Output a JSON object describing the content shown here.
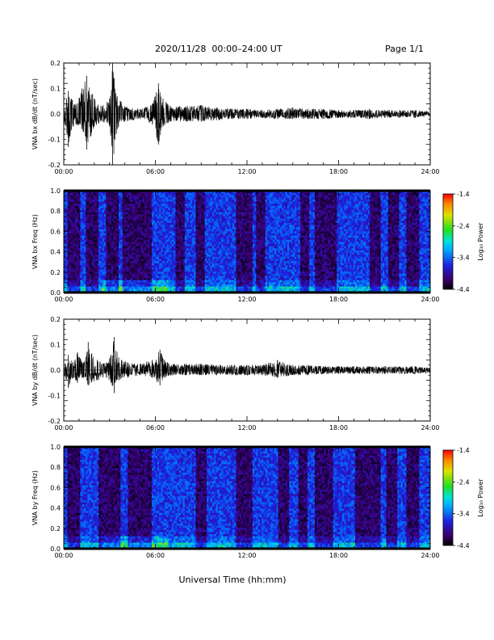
{
  "header": {
    "title": "2020/11/28  00:00–24:00 UT",
    "page": "Page 1/1"
  },
  "xlabel": "Universal Time (hh:mm)",
  "colorbar": {
    "label": "Log₁₀ Power",
    "ticks": [
      "-1.4",
      "-2.4",
      "-3.4",
      "-4.4"
    ],
    "range": [
      -4.4,
      -1.4
    ]
  },
  "chart_data": [
    {
      "type": "line",
      "ylabel": "VNA bx dB/dt (nT/sec)",
      "xlim": [
        0,
        24
      ],
      "xticks": [
        "00:00",
        "06:00",
        "12:00",
        "18:00",
        "24:00"
      ],
      "ylim": [
        -0.2,
        0.2
      ],
      "yticks": [
        "0.2",
        "0.1",
        "0.0",
        "-0.1",
        "-0.2"
      ],
      "envelope": {
        "hours": [
          0,
          0.3,
          0.5,
          0.8,
          1.2,
          1.5,
          2.0,
          2.5,
          3.0,
          3.2,
          3.5,
          4.0,
          5.0,
          5.8,
          6.2,
          6.5,
          7.0,
          8.0,
          9.0,
          10.0,
          11.0,
          12.0,
          13.0,
          14.0,
          15.0,
          16.0,
          17.0,
          18.0,
          19.0,
          20.0,
          21.0,
          22.0,
          23.0,
          24.0
        ],
        "upper": [
          0.02,
          0.09,
          0.06,
          0.04,
          0.1,
          0.15,
          0.06,
          0.03,
          0.06,
          0.2,
          0.07,
          0.03,
          0.02,
          0.04,
          0.12,
          0.06,
          0.03,
          0.03,
          0.035,
          0.025,
          0.02,
          0.02,
          0.015,
          0.02,
          0.025,
          0.02,
          0.02,
          0.015,
          0.015,
          0.02,
          0.015,
          0.015,
          0.015,
          0.01
        ],
        "lower": [
          -0.02,
          -0.13,
          -0.06,
          -0.04,
          -0.06,
          -0.14,
          -0.05,
          -0.03,
          -0.05,
          -0.2,
          -0.06,
          -0.03,
          -0.02,
          -0.04,
          -0.12,
          -0.05,
          -0.03,
          -0.03,
          -0.03,
          -0.025,
          -0.02,
          -0.02,
          -0.015,
          -0.02,
          -0.02,
          -0.02,
          -0.02,
          -0.015,
          -0.015,
          -0.02,
          -0.015,
          -0.015,
          -0.015,
          -0.01
        ]
      }
    },
    {
      "type": "heatmap",
      "ylabel": "VNA bx Freq (Hz)",
      "xlim": [
        0,
        24
      ],
      "xticks": [
        "00:00",
        "06:00",
        "12:00",
        "18:00",
        "24:00"
      ],
      "ylim": [
        0,
        1
      ],
      "yticks": [
        "1.0",
        "0.8",
        "0.6",
        "0.4",
        "0.2",
        "0.0"
      ],
      "zlim": [
        -4.4,
        -1.4
      ],
      "quiet_bands_hours": [
        [
          0.2,
          1.1
        ],
        [
          1.4,
          2.3
        ],
        [
          2.8,
          3.6
        ],
        [
          3.9,
          5.7
        ],
        [
          7.3,
          7.9
        ],
        [
          8.6,
          9.2
        ],
        [
          11.3,
          12.3
        ],
        [
          12.6,
          13.2
        ],
        [
          15.5,
          16.1
        ],
        [
          16.4,
          17.9
        ],
        [
          20.0,
          20.8
        ],
        [
          21.2,
          21.9
        ],
        [
          22.4,
          23.3
        ]
      ],
      "low_freq_enhancement_hours": [
        [
          2.5,
          6.8
        ]
      ]
    },
    {
      "type": "line",
      "ylabel": "VNA by dB/dt (nT/sec)",
      "xlim": [
        0,
        24
      ],
      "xticks": [
        "00:00",
        "06:00",
        "12:00",
        "18:00",
        "24:00"
      ],
      "ylim": [
        -0.2,
        0.2
      ],
      "yticks": [
        "0.2",
        "0.1",
        "0.0",
        "-0.1",
        "-0.2"
      ],
      "envelope": {
        "hours": [
          0,
          0.3,
          0.6,
          0.9,
          1.3,
          1.6,
          2.2,
          2.8,
          3.1,
          3.3,
          3.6,
          4.2,
          5.0,
          5.8,
          6.3,
          6.6,
          7.2,
          8.0,
          9.0,
          10.0,
          11.0,
          12.0,
          13.0,
          14.0,
          15.0,
          16.0,
          17.0,
          18.0,
          19.0,
          20.0,
          21.0,
          22.0,
          23.0,
          24.0
        ],
        "upper": [
          0.02,
          0.06,
          0.03,
          0.07,
          0.03,
          0.11,
          0.04,
          0.03,
          0.06,
          0.13,
          0.05,
          0.03,
          0.025,
          0.04,
          0.08,
          0.04,
          0.025,
          0.025,
          0.025,
          0.02,
          0.02,
          0.02,
          0.02,
          0.04,
          0.02,
          0.02,
          0.015,
          0.015,
          0.015,
          0.015,
          0.015,
          0.015,
          0.015,
          0.01
        ],
        "lower": [
          -0.02,
          -0.07,
          -0.03,
          -0.05,
          -0.03,
          -0.06,
          -0.04,
          -0.03,
          -0.05,
          -0.09,
          -0.04,
          -0.03,
          -0.02,
          -0.03,
          -0.06,
          -0.03,
          -0.02,
          -0.02,
          -0.02,
          -0.02,
          -0.02,
          -0.02,
          -0.02,
          -0.03,
          -0.02,
          -0.02,
          -0.015,
          -0.015,
          -0.015,
          -0.015,
          -0.015,
          -0.015,
          -0.015,
          -0.01
        ]
      }
    },
    {
      "type": "heatmap",
      "ylabel": "VNA by Freq (Hz)",
      "xlim": [
        0,
        24
      ],
      "xticks": [
        "00:00",
        "06:00",
        "12:00",
        "18:00",
        "24:00"
      ],
      "ylim": [
        0,
        1
      ],
      "yticks": [
        "1.0",
        "0.8",
        "0.6",
        "0.4",
        "0.2",
        "0.0"
      ],
      "zlim": [
        -4.4,
        -1.4
      ],
      "quiet_bands_hours": [
        [
          0.2,
          1.1
        ],
        [
          2.3,
          3.7
        ],
        [
          4.2,
          5.8
        ],
        [
          8.7,
          9.3
        ],
        [
          11.3,
          12.3
        ],
        [
          14.1,
          14.8
        ],
        [
          15.4,
          16.0
        ],
        [
          16.4,
          17.6
        ],
        [
          19.1,
          20.8
        ],
        [
          21.1,
          21.8
        ],
        [
          22.4,
          23.3
        ]
      ],
      "low_freq_enhancement_hours": [
        [
          2.5,
          6.8
        ]
      ]
    }
  ]
}
